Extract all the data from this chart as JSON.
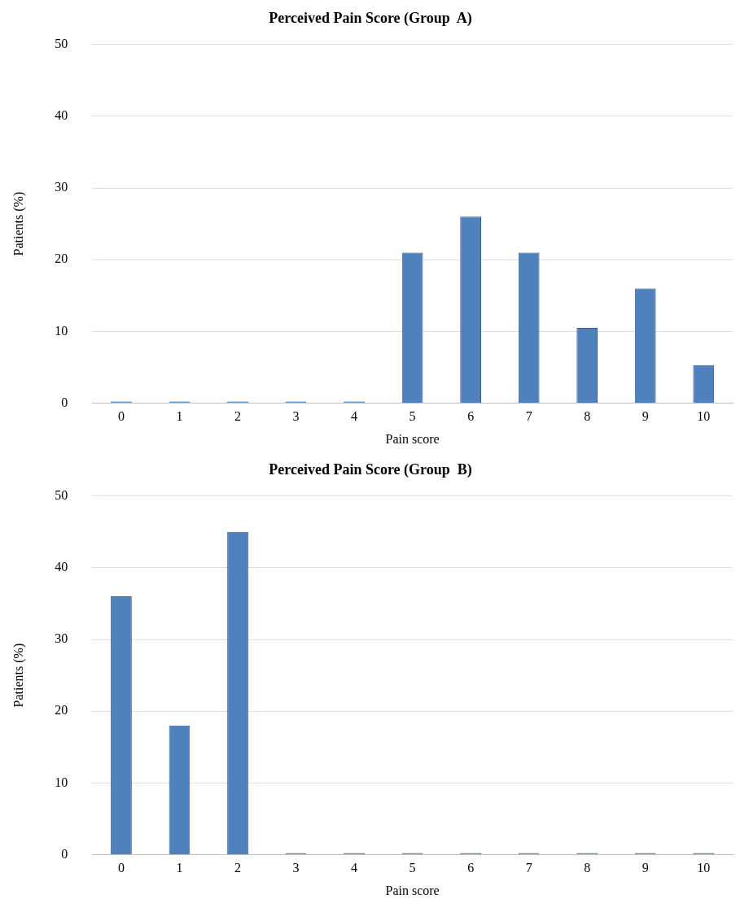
{
  "chart_data": [
    {
      "type": "bar",
      "title": "Perceived Pain Score (Group  A)",
      "xlabel": "Pain score",
      "ylabel": "Patients (%)",
      "categories": [
        "0",
        "1",
        "2",
        "3",
        "4",
        "5",
        "6",
        "7",
        "8",
        "9",
        "10"
      ],
      "values": [
        0,
        0,
        0,
        0,
        0,
        21,
        26,
        21,
        10.5,
        16,
        5.3
      ],
      "color": "#4f81bd",
      "ylim": [
        0,
        50
      ],
      "yticks": [
        0,
        10,
        20,
        30,
        40,
        50
      ],
      "grid": "y",
      "legend": false
    },
    {
      "type": "bar",
      "title": "Perceived Pain Score (Group  B)",
      "xlabel": "Pain score",
      "ylabel": "Patients (%)",
      "categories": [
        "0",
        "1",
        "2",
        "3",
        "4",
        "5",
        "6",
        "7",
        "8",
        "9",
        "10"
      ],
      "values": [
        36,
        18,
        45,
        0,
        0,
        0,
        0,
        0,
        0,
        0,
        0
      ],
      "color": "#4f81bd",
      "ylim": [
        0,
        50
      ],
      "yticks": [
        0,
        10,
        20,
        30,
        40,
        50
      ],
      "grid": "y",
      "legend": false
    }
  ]
}
